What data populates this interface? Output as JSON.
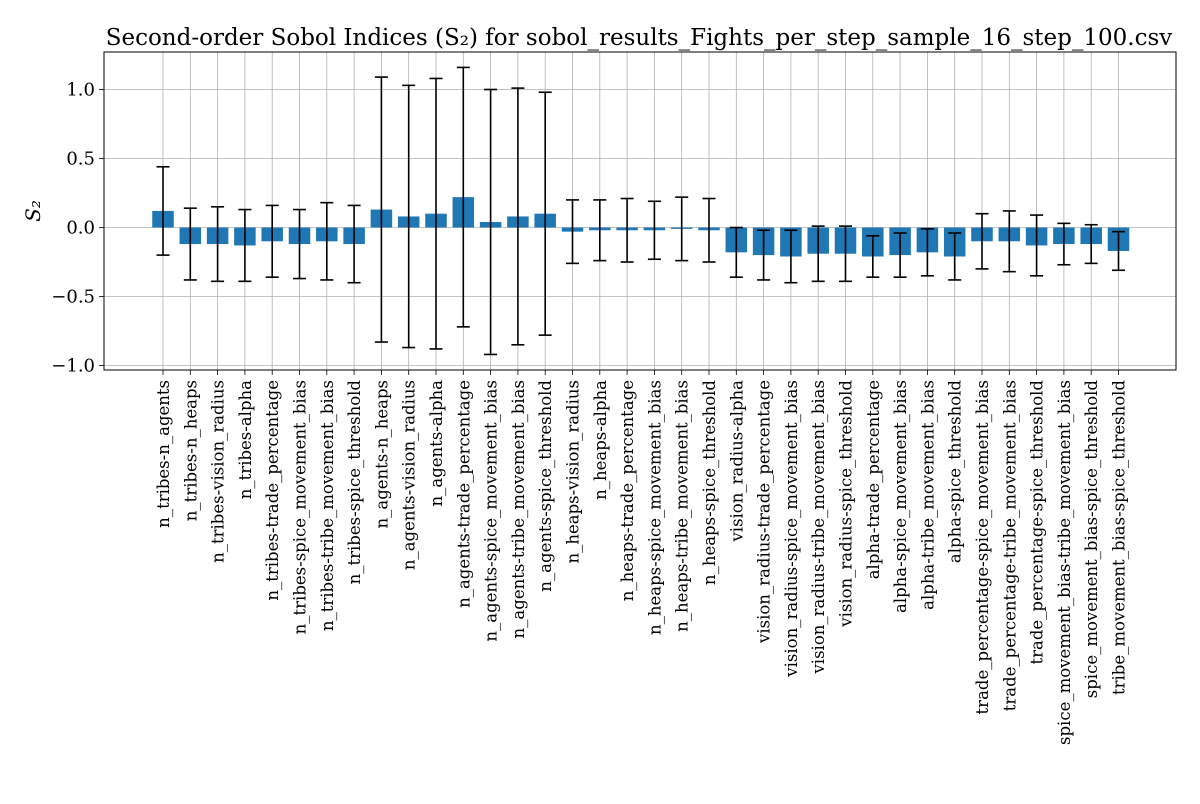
{
  "chart_data": {
    "type": "bar",
    "title": "Second-order Sobol Indices (S₂) for sobol_results_Fights_per_step_sample_16_step_100.csv",
    "xlabel": "",
    "ylabel": "S₂",
    "ylim": [
      -1.02,
      1.27
    ],
    "yticks": [
      1.0,
      0.5,
      0.0,
      -0.5,
      -1.0
    ],
    "ytick_labels": [
      "1.0",
      "0.5",
      "0.0",
      "−0.5",
      "−1.0"
    ],
    "grid": true,
    "legend": "none",
    "bar_color": "#1f77b4",
    "errorbar_color": "#000000",
    "categories": [
      "n_tribes-n_agents",
      "n_tribes-n_heaps",
      "n_tribes-vision_radius",
      "n_tribes-alpha",
      "n_tribes-trade_percentage",
      "n_tribes-spice_movement_bias",
      "n_tribes-tribe_movement_bias",
      "n_tribes-spice_threshold",
      "n_agents-n_heaps",
      "n_agents-vision_radius",
      "n_agents-alpha",
      "n_agents-trade_percentage",
      "n_agents-spice_movement_bias",
      "n_agents-tribe_movement_bias",
      "n_agents-spice_threshold",
      "n_heaps-vision_radius",
      "n_heaps-alpha",
      "n_heaps-trade_percentage",
      "n_heaps-spice_movement_bias",
      "n_heaps-tribe_movement_bias",
      "n_heaps-spice_threshold",
      "vision_radius-alpha",
      "vision_radius-trade_percentage",
      "vision_radius-spice_movement_bias",
      "vision_radius-tribe_movement_bias",
      "vision_radius-spice_threshold",
      "alpha-trade_percentage",
      "alpha-spice_movement_bias",
      "alpha-tribe_movement_bias",
      "alpha-spice_threshold",
      "trade_percentage-spice_movement_bias",
      "trade_percentage-tribe_movement_bias",
      "trade_percentage-spice_threshold",
      "spice_movement_bias-tribe_movement_bias",
      "spice_movement_bias-spice_threshold",
      "tribe_movement_bias-spice_threshold"
    ],
    "values": [
      0.12,
      -0.12,
      -0.12,
      -0.13,
      -0.1,
      -0.12,
      -0.1,
      -0.12,
      0.13,
      0.08,
      0.1,
      0.22,
      0.04,
      0.08,
      0.1,
      -0.03,
      -0.02,
      -0.02,
      -0.02,
      -0.01,
      -0.02,
      -0.18,
      -0.2,
      -0.21,
      -0.19,
      -0.19,
      -0.21,
      -0.2,
      -0.18,
      -0.21,
      -0.1,
      -0.1,
      -0.13,
      -0.12,
      -0.12,
      -0.17
    ],
    "errors": [
      0.32,
      0.26,
      0.27,
      0.26,
      0.26,
      0.25,
      0.28,
      0.28,
      0.96,
      0.95,
      0.98,
      0.94,
      0.96,
      0.93,
      0.88,
      0.23,
      0.22,
      0.23,
      0.21,
      0.23,
      0.23,
      0.18,
      0.18,
      0.19,
      0.2,
      0.2,
      0.15,
      0.16,
      0.17,
      0.17,
      0.2,
      0.22,
      0.22,
      0.15,
      0.14,
      0.14
    ]
  }
}
